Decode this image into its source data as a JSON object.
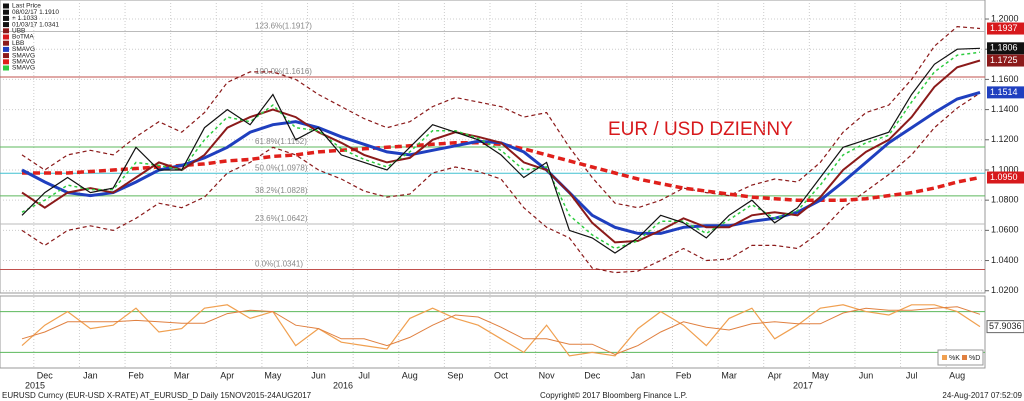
{
  "chart_data": [
    {
      "type": "line",
      "title": "EUR / USD DZIENNY",
      "categories": [
        null,
        "Dec",
        null,
        "Jan",
        null,
        "Feb",
        null,
        "Mar",
        null,
        "Apr",
        null,
        "May",
        null,
        "Jun",
        null,
        "Jul",
        null,
        "Aug",
        null,
        "Sep",
        null,
        "Oct",
        null,
        "Nov",
        null,
        "Dec",
        null,
        "Jan",
        null,
        "Feb",
        null,
        "Mar",
        null,
        "Apr",
        null,
        "May",
        null,
        "Jun",
        null,
        "Jul",
        null,
        "Aug",
        null
      ],
      "years": [
        "2015",
        "2016",
        "2017"
      ],
      "legend": [
        "Last Price",
        "08/02/17 1.1910",
        "+ 1.1033",
        "01/03/17 1.0341",
        "UBB",
        "BoTMA",
        "LBB",
        "SMAVG",
        "SMAVG",
        "SMAVG",
        "SMAVG"
      ],
      "ylim": [
        1.0185,
        1.2126
      ],
      "yticks": [
        {
          "value": 1.2,
          "label": "1.2000"
        },
        {
          "value": 1.18,
          "label": "1.1800"
        },
        {
          "value": 1.16,
          "label": "1.1600"
        },
        {
          "value": 1.14,
          "label": "1.1400"
        },
        {
          "value": 1.12,
          "label": "1.1200"
        },
        {
          "value": 1.1,
          "label": "1.1000"
        },
        {
          "value": 1.08,
          "label": "1.0800"
        },
        {
          "value": 1.06,
          "label": "1.0600"
        },
        {
          "value": 1.04,
          "label": "1.0400"
        },
        {
          "value": 1.02,
          "label": "1.0200"
        }
      ],
      "grid": true,
      "fib_levels": [
        {
          "value": 1.1917,
          "label": "123.6%(1.1917)",
          "color": "#bbbbbb"
        },
        {
          "value": 1.1616,
          "label": "100.0%(1.1616)",
          "color": "#c0504d"
        },
        {
          "value": 1.1152,
          "label": "61.8%(1.1152)",
          "color": "#5cb85c"
        },
        {
          "value": 1.0978,
          "label": "50.0%(1.0978)",
          "color": "#40c0d0"
        },
        {
          "value": 1.0828,
          "label": "38.2%(1.0828)",
          "color": "#5cb85c"
        },
        {
          "value": 1.0642,
          "label": "23.6%(1.0642)",
          "color": "#bbbbbb"
        },
        {
          "value": 1.0341,
          "label": "0.0%(1.0341)",
          "color": "#c0504d"
        }
      ],
      "series": [
        {
          "name": "UBB",
          "color": "#8b1a1a",
          "dash": "4 3",
          "width": 1.2,
          "last_label": "1.1937",
          "label_color": "#d7191c",
          "values": [
            1.11,
            1.1,
            1.11,
            1.113,
            1.11,
            1.122,
            1.132,
            1.125,
            1.138,
            1.158,
            1.165,
            1.165,
            1.16,
            1.15,
            1.142,
            1.134,
            1.128,
            1.132,
            1.142,
            1.148,
            1.145,
            1.142,
            1.135,
            1.138,
            1.115,
            1.095,
            1.078,
            1.075,
            1.08,
            1.088,
            1.085,
            1.083,
            1.09,
            1.094,
            1.092,
            1.105,
            1.125,
            1.138,
            1.143,
            1.16,
            1.182,
            1.195,
            1.1937
          ]
        },
        {
          "name": "LBB",
          "color": "#8b1a1a",
          "dash": "4 3",
          "width": 1.2,
          "values": [
            1.06,
            1.05,
            1.06,
            1.063,
            1.06,
            1.068,
            1.078,
            1.075,
            1.082,
            1.098,
            1.105,
            1.115,
            1.11,
            1.1,
            1.094,
            1.086,
            1.082,
            1.084,
            1.098,
            1.102,
            1.099,
            1.094,
            1.075,
            1.062,
            1.055,
            1.035,
            1.032,
            1.033,
            1.04,
            1.048,
            1.04,
            1.041,
            1.05,
            1.05,
            1.048,
            1.059,
            1.075,
            1.086,
            1.097,
            1.11,
            1.128,
            1.141,
            1.151
          ]
        },
        {
          "name": "SMAVG",
          "color": "#e0201b",
          "dash": "7 4",
          "width": 3.5,
          "last_label": "1.0950",
          "label_color": "#d7191c",
          "values": [
            1.098,
            1.098,
            1.098,
            1.099,
            1.1,
            1.101,
            1.102,
            1.103,
            1.104,
            1.106,
            1.107,
            1.109,
            1.11,
            1.112,
            1.113,
            1.114,
            1.115,
            1.116,
            1.117,
            1.118,
            1.118,
            1.117,
            1.114,
            1.11,
            1.106,
            1.102,
            1.098,
            1.094,
            1.091,
            1.088,
            1.086,
            1.084,
            1.082,
            1.081,
            1.08,
            1.08,
            1.08,
            1.081,
            1.083,
            1.085,
            1.088,
            1.092,
            1.095
          ]
        },
        {
          "name": "SMAVG",
          "color": "#1f3fbf",
          "dash": "",
          "width": 3,
          "last_label": "1.1514",
          "label_color": "#1f3fbf",
          "values": [
            1.1,
            1.092,
            1.085,
            1.083,
            1.085,
            1.092,
            1.1,
            1.103,
            1.108,
            1.115,
            1.125,
            1.13,
            1.132,
            1.128,
            1.122,
            1.117,
            1.112,
            1.11,
            1.113,
            1.116,
            1.119,
            1.118,
            1.112,
            1.1,
            1.085,
            1.07,
            1.062,
            1.058,
            1.058,
            1.062,
            1.063,
            1.063,
            1.066,
            1.068,
            1.072,
            1.08,
            1.092,
            1.105,
            1.118,
            1.128,
            1.138,
            1.147,
            1.1514
          ]
        },
        {
          "name": "SMAVG",
          "color": "#8b1a1a",
          "dash": "",
          "width": 2,
          "last_label": "1.1725",
          "label_color": "#8b1a1a",
          "values": [
            1.085,
            1.075,
            1.085,
            1.088,
            1.085,
            1.095,
            1.105,
            1.1,
            1.11,
            1.128,
            1.135,
            1.14,
            1.135,
            1.125,
            1.118,
            1.11,
            1.105,
            1.108,
            1.12,
            1.125,
            1.122,
            1.118,
            1.105,
            1.1,
            1.085,
            1.065,
            1.052,
            1.053,
            1.06,
            1.068,
            1.062,
            1.062,
            1.07,
            1.072,
            1.07,
            1.082,
            1.1,
            1.112,
            1.12,
            1.135,
            1.155,
            1.168,
            1.1725
          ]
        },
        {
          "name": "SMAVG",
          "color": "#2ecc40",
          "dash": "3 3",
          "width": 1.5,
          "values": [
            1.072,
            1.08,
            1.09,
            1.087,
            1.087,
            1.105,
            1.103,
            1.1,
            1.12,
            1.135,
            1.132,
            1.143,
            1.128,
            1.126,
            1.114,
            1.107,
            1.102,
            1.112,
            1.126,
            1.126,
            1.121,
            1.113,
            1.1,
            1.102,
            1.07,
            1.057,
            1.048,
            1.053,
            1.066,
            1.066,
            1.058,
            1.067,
            1.077,
            1.068,
            1.073,
            1.09,
            1.11,
            1.118,
            1.123,
            1.145,
            1.165,
            1.176,
            1.178
          ]
        },
        {
          "name": "Last Price",
          "color": "#111111",
          "dash": "",
          "width": 1.2,
          "last_label": "1.1806",
          "label_color": "#111111",
          "values": [
            1.07,
            1.085,
            1.095,
            1.085,
            1.088,
            1.115,
            1.1,
            1.1,
            1.128,
            1.14,
            1.13,
            1.15,
            1.12,
            1.128,
            1.11,
            1.105,
            1.1,
            1.115,
            1.13,
            1.125,
            1.12,
            1.11,
            1.095,
            1.105,
            1.06,
            1.055,
            1.045,
            1.055,
            1.07,
            1.065,
            1.055,
            1.07,
            1.08,
            1.065,
            1.075,
            1.095,
            1.115,
            1.12,
            1.125,
            1.15,
            1.17,
            1.18,
            1.1806
          ]
        }
      ]
    },
    {
      "type": "line",
      "ylim": [
        0,
        100
      ],
      "levels": [
        20,
        80
      ],
      "series": [
        {
          "name": "%K",
          "color": "#f0a050",
          "width": 1.2,
          "last_label": "57.9036",
          "values": [
            30,
            60,
            80,
            55,
            60,
            85,
            50,
            55,
            85,
            90,
            70,
            80,
            30,
            55,
            35,
            30,
            25,
            70,
            85,
            70,
            60,
            40,
            20,
            60,
            15,
            20,
            15,
            55,
            80,
            60,
            30,
            70,
            85,
            40,
            60,
            85,
            90,
            80,
            75,
            90,
            90,
            80,
            57.9036
          ]
        },
        {
          "name": "%D",
          "color": "#e08040",
          "width": 1,
          "values": [
            40,
            50,
            65,
            65,
            65,
            67,
            65,
            63,
            63,
            77,
            82,
            80,
            60,
            55,
            40,
            40,
            30,
            42,
            60,
            75,
            72,
            57,
            40,
            40,
            32,
            32,
            17,
            30,
            50,
            65,
            57,
            53,
            62,
            65,
            62,
            62,
            78,
            85,
            82,
            82,
            85,
            87,
            76
          ]
        }
      ]
    }
  ],
  "footer": {
    "left": "EURUSD Curncy (EUR-USD X-RATE) AT_EURUSD_D  Daily 15NOV2015-24AUG2017",
    "center": "Copyright© 2017 Bloomberg Finance L.P.",
    "right": "24-Aug-2017 07:52:09"
  }
}
